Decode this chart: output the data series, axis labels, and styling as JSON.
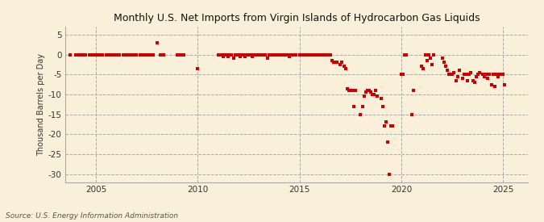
{
  "title": "Monthly U.S. Net Imports from Virgin Islands of Hydrocarbon Gas Liquids",
  "ylabel": "Thousand Barrels per Day",
  "source": "Source: U.S. Energy Information Administration",
  "background_color": "#faefd8",
  "scatter_color": "#cc0000",
  "xlim": [
    2003.5,
    2026.2
  ],
  "ylim": [
    -32,
    7
  ],
  "yticks": [
    5,
    0,
    -5,
    -10,
    -15,
    -20,
    -25,
    -30
  ],
  "xticks": [
    2005,
    2010,
    2015,
    2020,
    2025
  ],
  "vlines": [
    2005,
    2010,
    2015,
    2020,
    2025
  ],
  "data_points": [
    [
      2003.75,
      0
    ],
    [
      2004.0,
      0
    ],
    [
      2004.17,
      0
    ],
    [
      2004.33,
      0
    ],
    [
      2004.5,
      0
    ],
    [
      2004.67,
      0
    ],
    [
      2004.83,
      0
    ],
    [
      2005.0,
      0
    ],
    [
      2005.17,
      0
    ],
    [
      2005.33,
      0
    ],
    [
      2005.5,
      0
    ],
    [
      2005.67,
      0
    ],
    [
      2005.83,
      0
    ],
    [
      2006.0,
      0
    ],
    [
      2006.17,
      0
    ],
    [
      2006.33,
      0
    ],
    [
      2006.5,
      0
    ],
    [
      2006.67,
      0
    ],
    [
      2006.83,
      0
    ],
    [
      2007.0,
      0
    ],
    [
      2007.17,
      0
    ],
    [
      2007.33,
      0
    ],
    [
      2007.5,
      0
    ],
    [
      2007.67,
      0
    ],
    [
      2007.83,
      0
    ],
    [
      2008.0,
      3.0
    ],
    [
      2008.17,
      0
    ],
    [
      2008.33,
      0
    ],
    [
      2009.0,
      0
    ],
    [
      2009.17,
      0
    ],
    [
      2009.33,
      0
    ],
    [
      2010.0,
      -3.5
    ],
    [
      2011.0,
      0
    ],
    [
      2011.08,
      0
    ],
    [
      2011.17,
      0
    ],
    [
      2011.25,
      -0.5
    ],
    [
      2011.33,
      0
    ],
    [
      2011.42,
      0
    ],
    [
      2011.5,
      -0.5
    ],
    [
      2011.58,
      0
    ],
    [
      2011.67,
      0
    ],
    [
      2011.75,
      -1
    ],
    [
      2011.83,
      0
    ],
    [
      2012.0,
      0
    ],
    [
      2012.08,
      -0.5
    ],
    [
      2012.17,
      0
    ],
    [
      2012.25,
      0
    ],
    [
      2012.33,
      -0.5
    ],
    [
      2012.42,
      0
    ],
    [
      2012.5,
      0
    ],
    [
      2012.58,
      0
    ],
    [
      2012.67,
      -0.5
    ],
    [
      2012.75,
      0
    ],
    [
      2012.83,
      0
    ],
    [
      2013.0,
      0
    ],
    [
      2013.08,
      0
    ],
    [
      2013.17,
      0
    ],
    [
      2013.25,
      0
    ],
    [
      2013.33,
      0
    ],
    [
      2013.42,
      -1
    ],
    [
      2013.5,
      0
    ],
    [
      2013.58,
      0
    ],
    [
      2013.67,
      0
    ],
    [
      2013.75,
      0
    ],
    [
      2013.83,
      0
    ],
    [
      2014.0,
      0
    ],
    [
      2014.08,
      0
    ],
    [
      2014.17,
      0
    ],
    [
      2014.25,
      0
    ],
    [
      2014.33,
      0
    ],
    [
      2014.42,
      0
    ],
    [
      2014.5,
      -0.5
    ],
    [
      2014.58,
      0
    ],
    [
      2014.67,
      0
    ],
    [
      2014.75,
      0
    ],
    [
      2014.83,
      0
    ],
    [
      2015.0,
      0
    ],
    [
      2015.08,
      0
    ],
    [
      2015.17,
      0
    ],
    [
      2015.25,
      0
    ],
    [
      2015.33,
      0
    ],
    [
      2015.42,
      0
    ],
    [
      2015.5,
      0
    ],
    [
      2015.58,
      0
    ],
    [
      2015.67,
      0
    ],
    [
      2015.75,
      0
    ],
    [
      2015.83,
      0
    ],
    [
      2016.0,
      0
    ],
    [
      2016.08,
      0
    ],
    [
      2016.17,
      0
    ],
    [
      2016.25,
      0
    ],
    [
      2016.33,
      0
    ],
    [
      2016.42,
      0
    ],
    [
      2016.5,
      0
    ],
    [
      2016.58,
      -1.5
    ],
    [
      2016.67,
      -2
    ],
    [
      2016.75,
      -2
    ],
    [
      2016.83,
      -2
    ],
    [
      2017.0,
      -2.5
    ],
    [
      2017.08,
      -2
    ],
    [
      2017.17,
      -3
    ],
    [
      2017.25,
      -3.5
    ],
    [
      2017.33,
      -8.5
    ],
    [
      2017.42,
      -9
    ],
    [
      2017.5,
      -9
    ],
    [
      2017.58,
      -9
    ],
    [
      2017.67,
      -13
    ],
    [
      2017.75,
      -9
    ],
    [
      2018.0,
      -15
    ],
    [
      2018.08,
      -13
    ],
    [
      2018.17,
      -10.5
    ],
    [
      2018.25,
      -9.5
    ],
    [
      2018.33,
      -9
    ],
    [
      2018.42,
      -9
    ],
    [
      2018.5,
      -9.5
    ],
    [
      2018.58,
      -10
    ],
    [
      2018.67,
      -10
    ],
    [
      2018.75,
      -9
    ],
    [
      2018.83,
      -10.5
    ],
    [
      2019.0,
      -11
    ],
    [
      2019.08,
      -13
    ],
    [
      2019.17,
      -18
    ],
    [
      2019.25,
      -17
    ],
    [
      2019.33,
      -22
    ],
    [
      2019.42,
      -30
    ],
    [
      2019.5,
      -18
    ],
    [
      2019.58,
      -18
    ],
    [
      2020.0,
      -5
    ],
    [
      2020.08,
      -5
    ],
    [
      2020.17,
      0
    ],
    [
      2020.25,
      0
    ],
    [
      2020.5,
      -15
    ],
    [
      2020.58,
      -9
    ],
    [
      2021.0,
      -3
    ],
    [
      2021.08,
      -3.5
    ],
    [
      2021.17,
      0
    ],
    [
      2021.25,
      -1.5
    ],
    [
      2021.33,
      0
    ],
    [
      2021.42,
      -1
    ],
    [
      2021.5,
      -2.5
    ],
    [
      2021.58,
      0
    ],
    [
      2022.0,
      -1
    ],
    [
      2022.08,
      -2
    ],
    [
      2022.17,
      -3
    ],
    [
      2022.25,
      -4
    ],
    [
      2022.33,
      -5
    ],
    [
      2022.42,
      -5
    ],
    [
      2022.5,
      -5
    ],
    [
      2022.58,
      -4.5
    ],
    [
      2022.67,
      -6.5
    ],
    [
      2022.75,
      -5.5
    ],
    [
      2022.83,
      -4
    ],
    [
      2023.0,
      -6
    ],
    [
      2023.08,
      -5
    ],
    [
      2023.17,
      -5
    ],
    [
      2023.25,
      -6.5
    ],
    [
      2023.33,
      -5
    ],
    [
      2023.42,
      -4.5
    ],
    [
      2023.5,
      -6.5
    ],
    [
      2023.58,
      -7
    ],
    [
      2023.67,
      -5.5
    ],
    [
      2023.75,
      -5
    ],
    [
      2023.83,
      -4.5
    ],
    [
      2024.0,
      -5
    ],
    [
      2024.08,
      -5.5
    ],
    [
      2024.17,
      -5
    ],
    [
      2024.25,
      -6
    ],
    [
      2024.33,
      -5
    ],
    [
      2024.42,
      -7.5
    ],
    [
      2024.5,
      -5
    ],
    [
      2024.58,
      -8
    ],
    [
      2024.67,
      -5
    ],
    [
      2024.75,
      -5.5
    ],
    [
      2024.83,
      -5
    ],
    [
      2025.0,
      -5
    ],
    [
      2025.08,
      -7.5
    ]
  ]
}
